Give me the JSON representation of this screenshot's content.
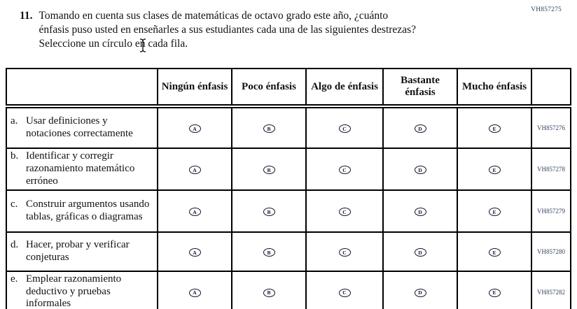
{
  "page": {
    "code_top_right": "VH857275"
  },
  "question": {
    "number": "11.",
    "text": "Tomando en cuenta sus clases de matemáticas de octavo grado este año, ¿cuánto énfasis puso usted en enseñarles a sus estudiantes cada una de las siguientes destrezas? Seleccione un círculo en cada fila."
  },
  "table": {
    "column_headers": [
      "",
      "Ningún énfasis",
      "Poco énfasis",
      "Algo de énfasis",
      "Bastante énfasis",
      "Mucho énfasis",
      ""
    ],
    "options": [
      "A",
      "B",
      "C",
      "D",
      "E"
    ],
    "rows": [
      {
        "letter": "a.",
        "label": "Usar definiciones y notaciones correctamente",
        "code": "VH857276"
      },
      {
        "letter": "b.",
        "label": "Identificar y corregir razonamiento matemático erróneo",
        "code": "VH857278"
      },
      {
        "letter": "c.",
        "label": "Construir argumentos usando tablas, gráficas o diagramas",
        "code": "VH857279"
      },
      {
        "letter": "d.",
        "label": "Hacer, probar y verificar conjeturas",
        "code": "VH857280"
      },
      {
        "letter": "e.",
        "label": "Emplear razonamiento deductivo y pruebas informales",
        "code": "VH857282"
      }
    ]
  },
  "colors": {
    "text": "#111111",
    "code_text": "#31405f",
    "border": "#000000",
    "bubble_outline": "#14142c"
  },
  "cursor": {
    "icon": "text-ibeam-cursor"
  }
}
